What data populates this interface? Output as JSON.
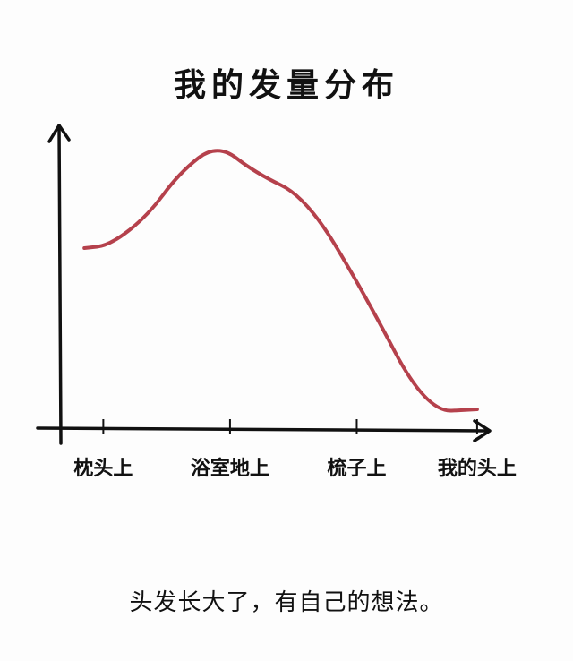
{
  "chart_data": {
    "type": "line",
    "title": "我的发量分布",
    "categories": [
      "枕头上",
      "浴室地上",
      "梳子上",
      "我的头上"
    ],
    "series": [
      {
        "color": "#b5414c",
        "points": [
          {
            "x": 0.0,
            "y": 61
          },
          {
            "x": 0.4,
            "y": 62
          },
          {
            "x": 1.0,
            "y": 73
          },
          {
            "x": 1.5,
            "y": 89
          },
          {
            "x": 2.1,
            "y": 100
          },
          {
            "x": 2.7,
            "y": 89
          },
          {
            "x": 3.5,
            "y": 80
          },
          {
            "x": 4.4,
            "y": 45
          },
          {
            "x": 5.4,
            "y": 0
          },
          {
            "x": 6.2,
            "y": 1
          }
        ]
      }
    ],
    "xlim": [
      -0.2,
      6.3
    ],
    "ylim": [
      -2,
      110
    ],
    "category_positions": [
      0.3,
      2.3,
      4.3,
      6.2
    ],
    "grid": false
  },
  "caption": "头发长大了，有自己的想法。"
}
